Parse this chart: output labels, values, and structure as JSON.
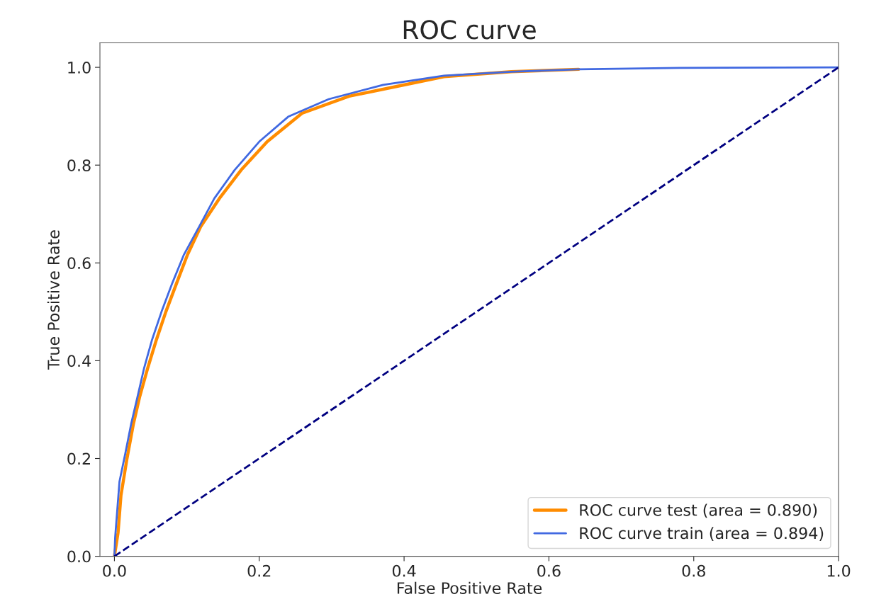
{
  "chart_data": {
    "type": "line",
    "title": "ROC curve",
    "xlabel": "False Positive Rate",
    "ylabel": "True Positive Rate",
    "xlim": [
      -0.02,
      1.0
    ],
    "ylim": [
      0.0,
      1.05
    ],
    "xticks": [
      {
        "value": 0.0,
        "label": "0.0"
      },
      0.2,
      0.4,
      0.6,
      0.8,
      {
        "value": 1.0,
        "label": "1.0"
      }
    ],
    "yticks": [
      {
        "value": 0.0,
        "label": "0.0"
      },
      0.2,
      0.4,
      0.6,
      0.8,
      {
        "value": 1.0,
        "label": "1.0"
      }
    ],
    "legend": "lower right",
    "grid": false,
    "marker": "none",
    "series": [
      {
        "name": "ROC curve test (area = 0.890)",
        "color": "#ff8c00",
        "line_style": "solid",
        "x": [
          0,
          0.005,
          0.009,
          0.017,
          0.026,
          0.035,
          0.046,
          0.058,
          0.071,
          0.086,
          0.101,
          0.119,
          0.145,
          0.175,
          0.211,
          0.259,
          0.324,
          0.39,
          0.455,
          0.548,
          0.641
        ],
        "values": [
          0,
          0.048,
          0.124,
          0.197,
          0.269,
          0.327,
          0.385,
          0.443,
          0.5,
          0.559,
          0.617,
          0.674,
          0.732,
          0.79,
          0.848,
          0.906,
          0.941,
          0.961,
          0.981,
          0.991,
          0.996
        ]
      },
      {
        "name": "ROC curve train (area = 0.894)",
        "color": "#4169e1",
        "line_style": "solid",
        "x": [
          0,
          0.001,
          0.004,
          0.007,
          0.015,
          0.023,
          0.032,
          0.041,
          0.052,
          0.065,
          0.08,
          0.096,
          0.117,
          0.138,
          0.166,
          0.2,
          0.24,
          0.296,
          0.371,
          0.455,
          0.548,
          0.641,
          0.78,
          1.0
        ],
        "values": [
          0,
          0.038,
          0.096,
          0.153,
          0.21,
          0.27,
          0.327,
          0.385,
          0.443,
          0.5,
          0.559,
          0.617,
          0.674,
          0.732,
          0.79,
          0.848,
          0.899,
          0.935,
          0.964,
          0.983,
          0.991,
          0.996,
          0.999,
          1.0
        ]
      },
      {
        "color": "#000080",
        "line_style": "dashed",
        "x": [
          0,
          1
        ],
        "values": [
          0,
          1
        ]
      }
    ]
  }
}
